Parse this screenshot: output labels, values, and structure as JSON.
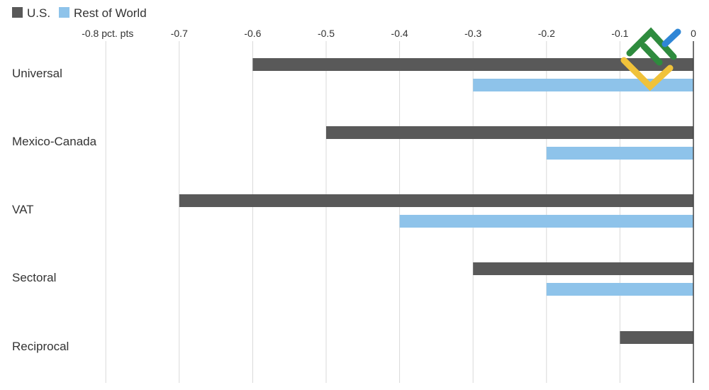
{
  "colors": {
    "us": "#595959",
    "row": "#8ec3ea",
    "grid": "#d9d9d9",
    "zero_line": "#444444",
    "text": "#333333",
    "logo_green": "#2e8b3e",
    "logo_yellow": "#f0c23a",
    "logo_blue": "#2f86d6"
  },
  "logo": {
    "icon": "stock-logo-icon"
  },
  "chart_data": {
    "type": "bar",
    "orientation": "horizontal",
    "title": "",
    "xlabel": "",
    "ylabel": "",
    "xlim": [
      -0.8,
      0
    ],
    "grid": true,
    "legend_position": "top-left",
    "x_ticks": [
      {
        "value": -0.8,
        "label": "-0.8 pct. pts"
      },
      {
        "value": -0.7,
        "label": "-0.7"
      },
      {
        "value": -0.6,
        "label": "-0.6"
      },
      {
        "value": -0.5,
        "label": "-0.5"
      },
      {
        "value": -0.4,
        "label": "-0.4"
      },
      {
        "value": -0.3,
        "label": "-0.3"
      },
      {
        "value": -0.2,
        "label": "-0.2"
      },
      {
        "value": -0.1,
        "label": "-0.1"
      },
      {
        "value": 0,
        "label": "0"
      }
    ],
    "categories": [
      "Universal",
      "Mexico-Canada",
      "VAT",
      "Sectoral",
      "Reciprocal"
    ],
    "series": [
      {
        "name": "U.S.",
        "color": "#595959",
        "values": [
          -0.6,
          -0.5,
          -0.7,
          -0.3,
          -0.1
        ]
      },
      {
        "name": "Rest of World",
        "color": "#8ec3ea",
        "values": [
          -0.3,
          -0.2,
          -0.4,
          -0.2,
          null
        ]
      }
    ]
  }
}
